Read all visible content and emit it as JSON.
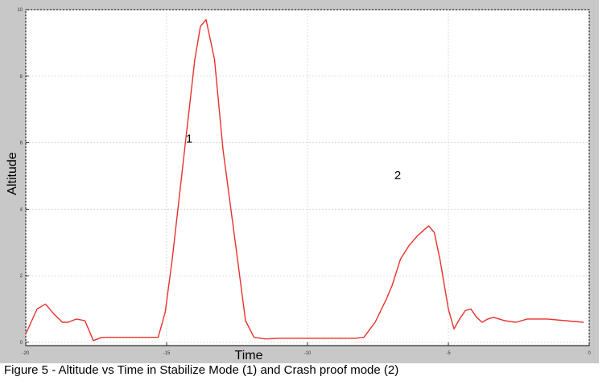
{
  "chart_data": {
    "type": "line",
    "title": "",
    "xlabel": "Time",
    "ylabel": "Altitude",
    "xlim": [
      -20,
      0
    ],
    "ylim": [
      -0.1,
      10
    ],
    "xticks": [
      "-20",
      "-15",
      "-10",
      "-5",
      "0"
    ],
    "yticks": [
      "0",
      "2",
      "4",
      "6",
      "8",
      "10"
    ],
    "grid": true,
    "colors": {
      "series": "#e8312c",
      "frame_bg": "#c8c8c8",
      "plot_bg": "#ffffff",
      "grid": "#d4d4d4"
    },
    "series": [
      {
        "x": [
          -20.0,
          -19.6,
          -19.3,
          -19.0,
          -18.7,
          -18.5,
          -18.2,
          -17.9,
          -17.6,
          -17.3,
          -17.1,
          -16.5,
          -15.8,
          -15.3,
          -15.05,
          -14.8,
          -14.4,
          -14.0,
          -13.8,
          -13.6,
          -13.3,
          -13.0,
          -12.5,
          -12.2,
          -11.9,
          -11.5,
          -11.0,
          -10.0,
          -8.3,
          -8.0,
          -7.6,
          -7.2,
          -7.0,
          -6.7,
          -6.4,
          -6.2,
          -6.1,
          -5.9,
          -5.7,
          -5.5,
          -5.3,
          -5.0,
          -4.8,
          -4.6,
          -4.4,
          -4.2,
          -4.0,
          -3.8,
          -3.6,
          -3.4,
          -3.2,
          -3.0,
          -2.6,
          -2.2,
          -2.0,
          -1.5,
          -0.2
        ],
        "y": [
          0.25,
          1.0,
          1.15,
          0.85,
          0.6,
          0.6,
          0.7,
          0.65,
          0.05,
          0.15,
          0.15,
          0.15,
          0.15,
          0.15,
          0.9,
          2.5,
          5.5,
          8.5,
          9.5,
          9.7,
          8.5,
          5.8,
          2.6,
          0.65,
          0.15,
          0.1,
          0.12,
          0.12,
          0.12,
          0.15,
          0.6,
          1.3,
          1.7,
          2.5,
          2.9,
          3.1,
          3.2,
          3.35,
          3.5,
          3.3,
          2.5,
          1.0,
          0.4,
          0.7,
          0.95,
          1.0,
          0.75,
          0.6,
          0.7,
          0.75,
          0.7,
          0.65,
          0.6,
          0.7,
          0.7,
          0.7,
          0.6
        ]
      }
    ],
    "annotations": [
      {
        "text": "1",
        "x": -14.2,
        "y": 6.0
      },
      {
        "text": "2",
        "x": -6.8,
        "y": 4.9
      }
    ]
  },
  "caption": "Figure 5 - Altitude vs Time in Stabilize Mode (1) and Crash proof mode (2)"
}
